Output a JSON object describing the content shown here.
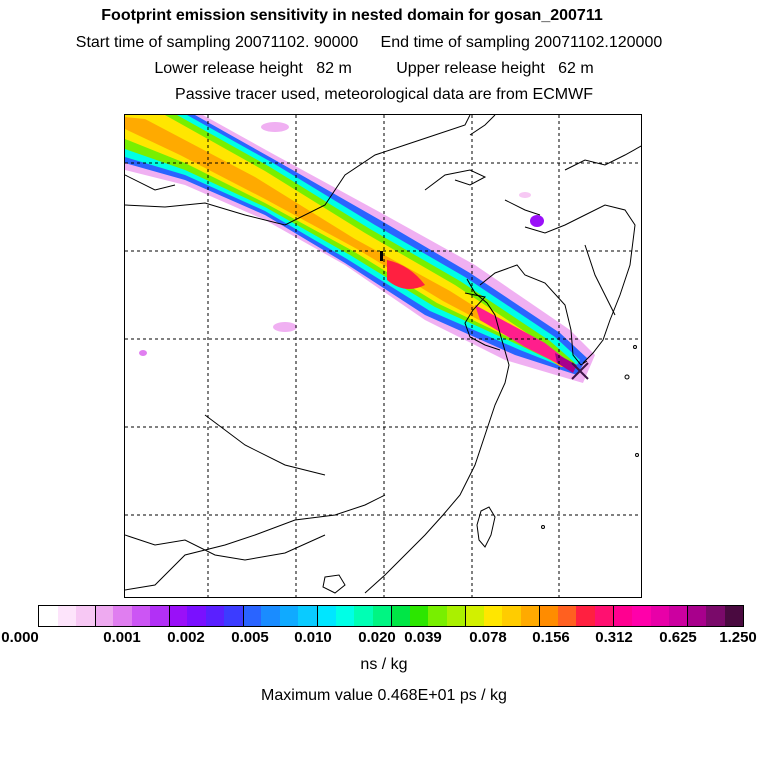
{
  "header": {
    "title": "Footprint emission sensitivity in nested domain for gosan_200711",
    "sampling": "Start time of sampling 20071102. 90000     End time of sampling 20071102.120000",
    "release": "Lower release height   82 m          Upper release height   62 m",
    "tracer": "Passive tracer used, meteorological data are from ECMWF"
  },
  "map": {
    "receptor": "Gosan",
    "plume_peak_color": "#ff1e8c",
    "receptor_color": "#3c1446"
  },
  "colorbar": {
    "colors": [
      "#ffffff",
      "#fde4fb",
      "#f7c8f4",
      "#eeaaf0",
      "#e07ef0",
      "#cc55f4",
      "#b230f6",
      "#9a10f8",
      "#7a10ff",
      "#5a20ff",
      "#3c3cff",
      "#2a64ff",
      "#1a8cff",
      "#10aaff",
      "#0acbff",
      "#00e6ff",
      "#00ffe6",
      "#00ffb4",
      "#00f582",
      "#00e646",
      "#2ce600",
      "#78ef00",
      "#aaf000",
      "#d2f000",
      "#ffe600",
      "#ffcc00",
      "#ffaa00",
      "#ff8c00",
      "#ff6020",
      "#ff2040",
      "#ff1070",
      "#ff0090",
      "#ff00aa",
      "#e800a8",
      "#cc00a0",
      "#a8008c",
      "#7a0a6a",
      "#4a0a40"
    ],
    "tick_labels": [
      "0.000",
      "0.001",
      "0.002",
      "0.005",
      "0.010",
      "0.020",
      "0.039",
      "0.078",
      "0.156",
      "0.312",
      "0.625",
      "1.250"
    ],
    "units": "ns / kg",
    "max_value": "Maximum value  0.468E+01 ps / kg"
  }
}
